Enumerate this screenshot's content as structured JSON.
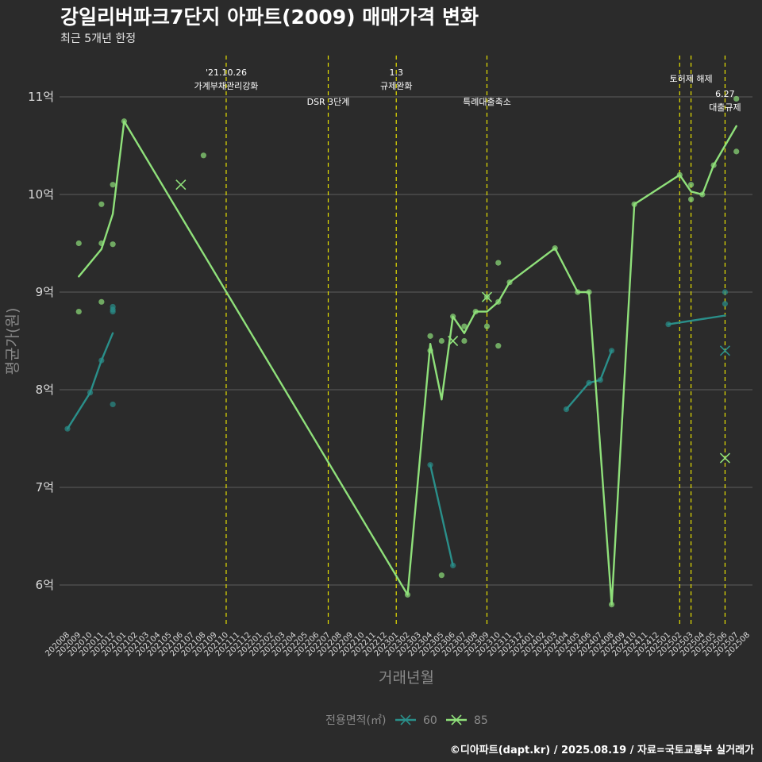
{
  "title": "강일리버파크7단지 아파트(2009) 매매가격 변화",
  "subtitle": "최근 5개년 한정",
  "caption": "©디아파트(dapt.kr) / 2025.08.19 / 자료=국토교통부 실거래가",
  "chart_data": {
    "type": "line",
    "xlabel": "거래년월",
    "ylabel": "평균가(원)",
    "y_ticks": [
      {
        "value": 6,
        "label": "6억"
      },
      {
        "value": 7,
        "label": "7억"
      },
      {
        "value": 8,
        "label": "8억"
      },
      {
        "value": 9,
        "label": "9억"
      },
      {
        "value": 10,
        "label": "10억"
      },
      {
        "value": 11,
        "label": "11억"
      }
    ],
    "ylim": [
      5.6,
      11.45
    ],
    "x_categories": [
      "202008",
      "202009",
      "202010",
      "202011",
      "202012",
      "202101",
      "202102",
      "202103",
      "202104",
      "202105",
      "202106",
      "202107",
      "202108",
      "202109",
      "202110",
      "202111",
      "202112",
      "202201",
      "202202",
      "202203",
      "202204",
      "202205",
      "202206",
      "202207",
      "202208",
      "202209",
      "202210",
      "202211",
      "202212",
      "202301",
      "202302",
      "202303",
      "202304",
      "202305",
      "202306",
      "202307",
      "202308",
      "202309",
      "202310",
      "202311",
      "202312",
      "202401",
      "202402",
      "202403",
      "202404",
      "202405",
      "202406",
      "202407",
      "202408",
      "202409",
      "202410",
      "202411",
      "202412",
      "202501",
      "202502",
      "202503",
      "202504",
      "202505",
      "202506",
      "202507",
      "202508"
    ],
    "legend_title": "전용면적(㎡)",
    "legend_position": "bottom",
    "series": [
      {
        "name": "60",
        "color": "#2a8f8a",
        "lines": [
          [
            [
              "202008",
              7.6
            ],
            [
              "202010",
              7.97
            ],
            [
              "202011",
              8.3
            ],
            [
              "202012",
              8.58
            ]
          ],
          [
            [
              "202304",
              7.23
            ],
            [
              "202306",
              6.2
            ]
          ],
          [
            [
              "202404",
              7.8
            ],
            [
              "202406",
              8.07
            ],
            [
              "202407",
              8.1
            ],
            [
              "202408",
              8.4
            ]
          ],
          [
            [
              "202501",
              8.67
            ],
            [
              "202506",
              8.76
            ]
          ]
        ],
        "points": [
          [
            "202008",
            7.6
          ],
          [
            "202010",
            7.97
          ],
          [
            "202011",
            8.3
          ],
          [
            "202012",
            8.85
          ],
          [
            "202012",
            8.82
          ],
          [
            "202012",
            8.8
          ],
          [
            "202012",
            7.85
          ],
          [
            "202304",
            7.23
          ],
          [
            "202306",
            6.2
          ],
          [
            "202404",
            7.8
          ],
          [
            "202406",
            8.07
          ],
          [
            "202407",
            8.1
          ],
          [
            "202408",
            8.4
          ],
          [
            "202501",
            8.67
          ],
          [
            "202506",
            9.0
          ],
          [
            "202506",
            8.88
          ]
        ],
        "cross_points": [
          [
            "202506",
            8.4
          ]
        ]
      },
      {
        "name": "85",
        "color": "#8fe07a",
        "lines": [
          [
            [
              "202009",
              9.16
            ],
            [
              "202011",
              9.44
            ],
            [
              "202012",
              9.8
            ],
            [
              "202101",
              10.75
            ],
            [
              "202302",
              5.9
            ],
            [
              "202304",
              8.47
            ],
            [
              "202305",
              7.9
            ],
            [
              "202306",
              8.75
            ],
            [
              "202307",
              8.58
            ],
            [
              "202308",
              8.8
            ],
            [
              "202309",
              8.8
            ],
            [
              "202310",
              8.9
            ],
            [
              "202311",
              9.1
            ],
            [
              "202403",
              9.45
            ],
            [
              "202405",
              9.0
            ],
            [
              "202406",
              9.0
            ],
            [
              "202408",
              5.8
            ],
            [
              "202410",
              9.9
            ],
            [
              "202502",
              10.2
            ],
            [
              "202503",
              10.03
            ],
            [
              "202504",
              10.0
            ],
            [
              "202505",
              10.3
            ],
            [
              "202507",
              10.7
            ]
          ]
        ],
        "points": [
          [
            "202009",
            9.5
          ],
          [
            "202009",
            8.8
          ],
          [
            "202011",
            9.9
          ],
          [
            "202011",
            9.5
          ],
          [
            "202011",
            8.9
          ],
          [
            "202012",
            10.1
          ],
          [
            "202012",
            9.49
          ],
          [
            "202101",
            10.75
          ],
          [
            "202108",
            10.4
          ],
          [
            "202302",
            5.9
          ],
          [
            "202304",
            8.55
          ],
          [
            "202304",
            8.4
          ],
          [
            "202305",
            8.5
          ],
          [
            "202305",
            6.1
          ],
          [
            "202306",
            8.75
          ],
          [
            "202307",
            8.65
          ],
          [
            "202307",
            8.5
          ],
          [
            "202308",
            8.8
          ],
          [
            "202309",
            8.95
          ],
          [
            "202309",
            8.65
          ],
          [
            "202310",
            9.3
          ],
          [
            "202310",
            8.9
          ],
          [
            "202310",
            8.45
          ],
          [
            "202311",
            9.1
          ],
          [
            "202403",
            9.45
          ],
          [
            "202405",
            9.0
          ],
          [
            "202406",
            9.0
          ],
          [
            "202408",
            5.8
          ],
          [
            "202410",
            9.9
          ],
          [
            "202502",
            10.2
          ],
          [
            "202503",
            10.1
          ],
          [
            "202503",
            9.95
          ],
          [
            "202504",
            10.0
          ],
          [
            "202505",
            10.3
          ],
          [
            "202507",
            10.98
          ],
          [
            "202507",
            10.44
          ]
        ],
        "cross_points": [
          [
            "202106",
            10.1
          ],
          [
            "202306",
            8.5
          ],
          [
            "202309",
            8.95
          ],
          [
            "202506",
            7.3
          ]
        ]
      }
    ],
    "annotations": [
      {
        "x": "202110",
        "lines": [
          "'21.10.26",
          "가계부채관리강화"
        ],
        "row": 0
      },
      {
        "x": "202207",
        "lines": [
          "DSR 3단계"
        ],
        "row": 1
      },
      {
        "x": "202301",
        "lines": [
          "1.3",
          "규제완화"
        ],
        "row": 0
      },
      {
        "x": "202309",
        "lines": [
          "특례대출축소"
        ],
        "row": 1
      },
      {
        "x": "202502",
        "lines": [
          "토허제 해제"
        ],
        "row": 0,
        "label_x": "202503"
      },
      {
        "x": "202503",
        "lines": [],
        "row": 0
      },
      {
        "x": "202506",
        "lines": [
          "6.27",
          "대출규제"
        ],
        "row": 1
      }
    ],
    "grid": "horizontal"
  }
}
